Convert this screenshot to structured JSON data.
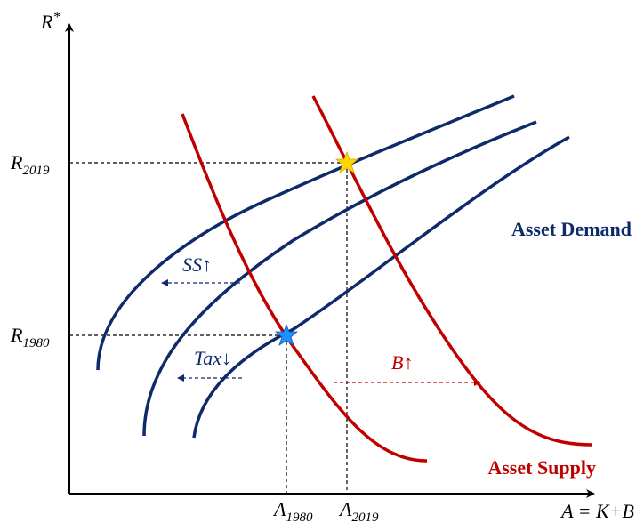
{
  "axes": {
    "y_label": {
      "base": "R",
      "sup": "*"
    },
    "x_label": "A = K+B"
  },
  "y_ticks": [
    {
      "base": "R",
      "sub": "2019"
    },
    {
      "base": "R",
      "sub": "1980"
    }
  ],
  "x_ticks": [
    {
      "base": "A",
      "sub": "1980"
    },
    {
      "base": "A",
      "sub": "2019"
    }
  ],
  "shifts": {
    "savings": "SS↑",
    "tax": "Tax↓",
    "debt": "B↑"
  },
  "curves": {
    "demand": "Asset Demand",
    "supply": "Asset Supply"
  }
}
